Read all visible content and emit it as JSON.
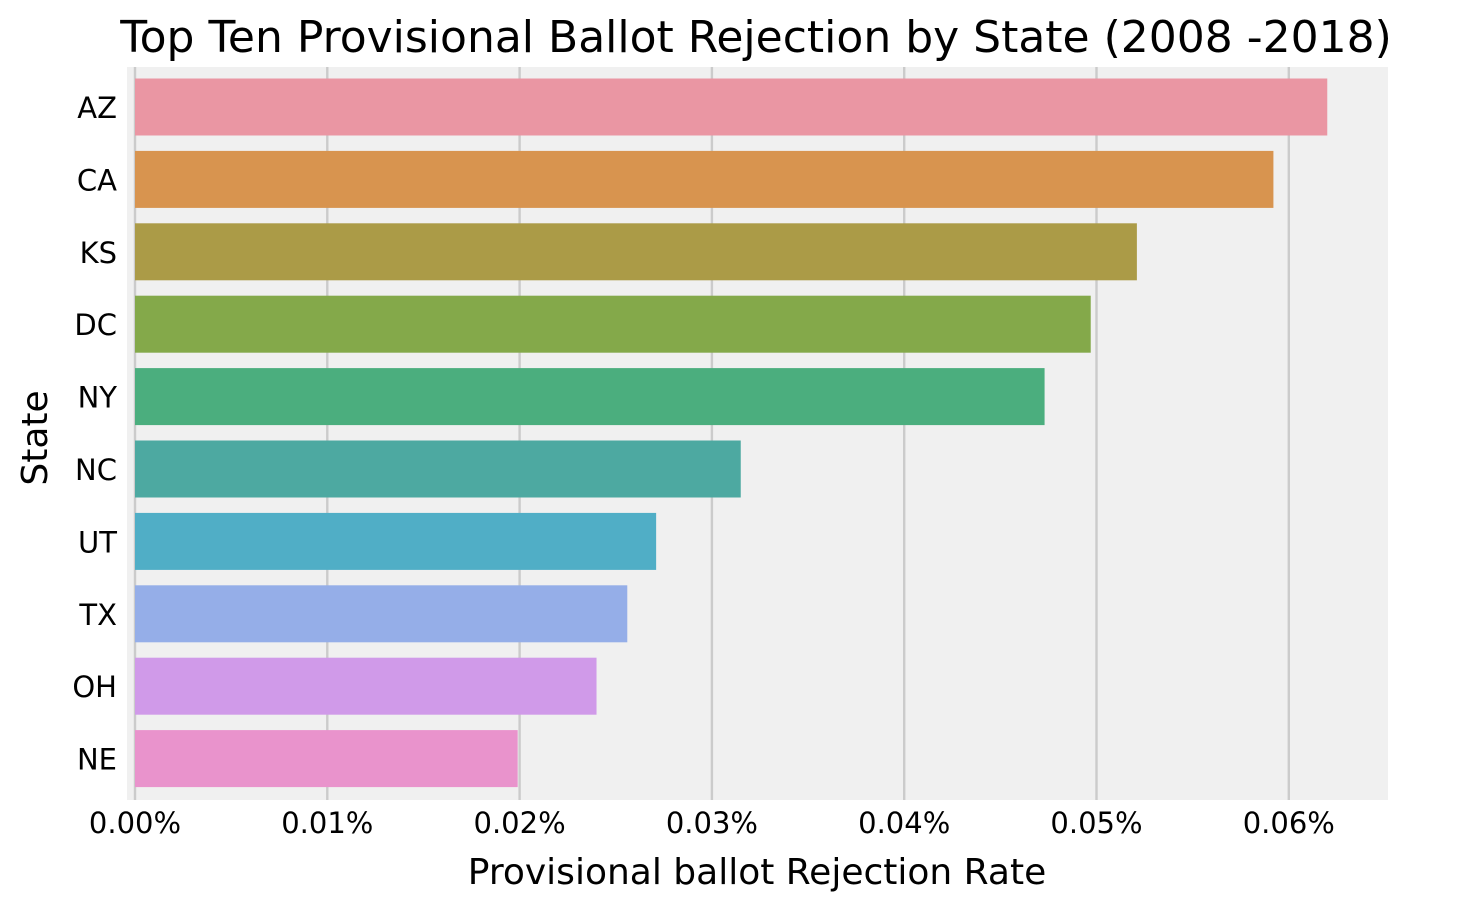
{
  "chart_data": {
    "type": "bar",
    "orientation": "horizontal",
    "title": "Top Ten Provisional Ballot Rejection by State (2008 -2018)",
    "xlabel": "Provisional ballot Rejection Rate",
    "ylabel": "State",
    "categories": [
      "AZ",
      "CA",
      "KS",
      "DC",
      "NY",
      "NC",
      "UT",
      "TX",
      "OH",
      "NE"
    ],
    "values": [
      0.00062,
      0.000592,
      0.000521,
      0.000497,
      0.000473,
      0.000315,
      0.000271,
      0.000256,
      0.00024,
      0.000199
    ],
    "xlim": [
      0,
      0.000655
    ],
    "xticks": [
      0,
      0.0001,
      0.0002,
      0.0003,
      0.0004,
      0.0005,
      0.0006
    ],
    "xtick_labels": [
      "0.00%",
      "0.01%",
      "0.02%",
      "0.03%",
      "0.04%",
      "0.05%",
      "0.06%"
    ],
    "colors": [
      "#ea96a3",
      "#d8944f",
      "#ab9b47",
      "#84a94a",
      "#4bae7e",
      "#4da9a1",
      "#50aec6",
      "#95aee8",
      "#d09ae9",
      "#e993cc"
    ],
    "grid": "vertical",
    "background": "#f0f0f0"
  }
}
